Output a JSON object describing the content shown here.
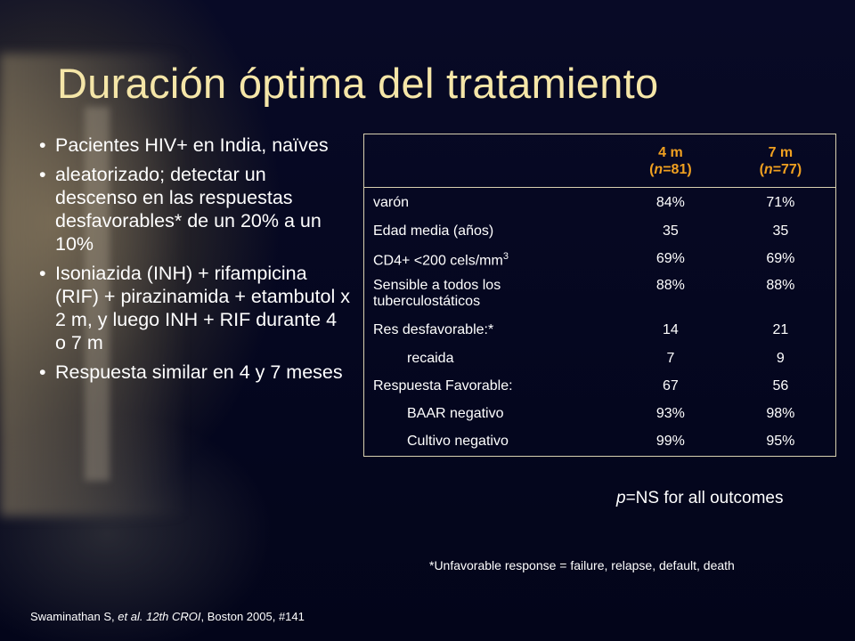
{
  "slide": {
    "title": "Duración óptima del tratamiento",
    "bullets": [
      "Pacientes HIV+ en India, naïves",
      "aleatorizado; detectar un descenso en las respuestas desfavorables* de un 20% a un 10%",
      "Isoniazida (INH) + rifampicina (RIF) + pirazinamida + etambutol x 2 m, y luego INH + RIF durante  4 o 7 m",
      "Respuesta similar en 4 y 7 meses"
    ],
    "bullet_glyph": "•",
    "table": {
      "col1_label": "4 m",
      "col1_n_prefix": "(",
      "col1_n_italic": "n",
      "col1_n_rest": "=81)",
      "col2_label": "7 m",
      "col2_n_prefix": "(",
      "col2_n_italic": "n",
      "col2_n_rest": "=77)",
      "rows": [
        {
          "label": "varón",
          "v1": "84%",
          "v2": "71%"
        },
        {
          "label": "Edad media (años)",
          "v1": "35",
          "v2": "35"
        },
        {
          "label": "CD4+ <200 cels/mm",
          "sup": "3",
          "v1": "69%",
          "v2": "69%"
        },
        {
          "label": "Sensible a todos los tuberculostáticos",
          "v1": "88%",
          "v2": "88%"
        },
        {
          "label": "Res desfavorable:*",
          "v1": "14",
          "v2": "21"
        },
        {
          "label": "recaida",
          "v1": "7",
          "v2": "9"
        },
        {
          "label": "Respuesta Favorable:",
          "v1": "67",
          "v2": "56"
        },
        {
          "label": "BAAR negativo",
          "v1": "93%",
          "v2": "98%"
        },
        {
          "label": "Cultivo negativo",
          "v1": "99%",
          "v2": "95%"
        }
      ]
    },
    "pns_italic": "p",
    "pns_rest": "=NS for all outcomes",
    "footnote": "*Unfavorable response = failure, relapse, default, death",
    "citation_a": "Swaminathan S, ",
    "citation_italic": "et al. 12th CROI",
    "citation_b": ", Boston 2005, #141",
    "colors": {
      "title": "#f5e6a8",
      "header": "#f0a020",
      "background": "#04061e"
    }
  }
}
